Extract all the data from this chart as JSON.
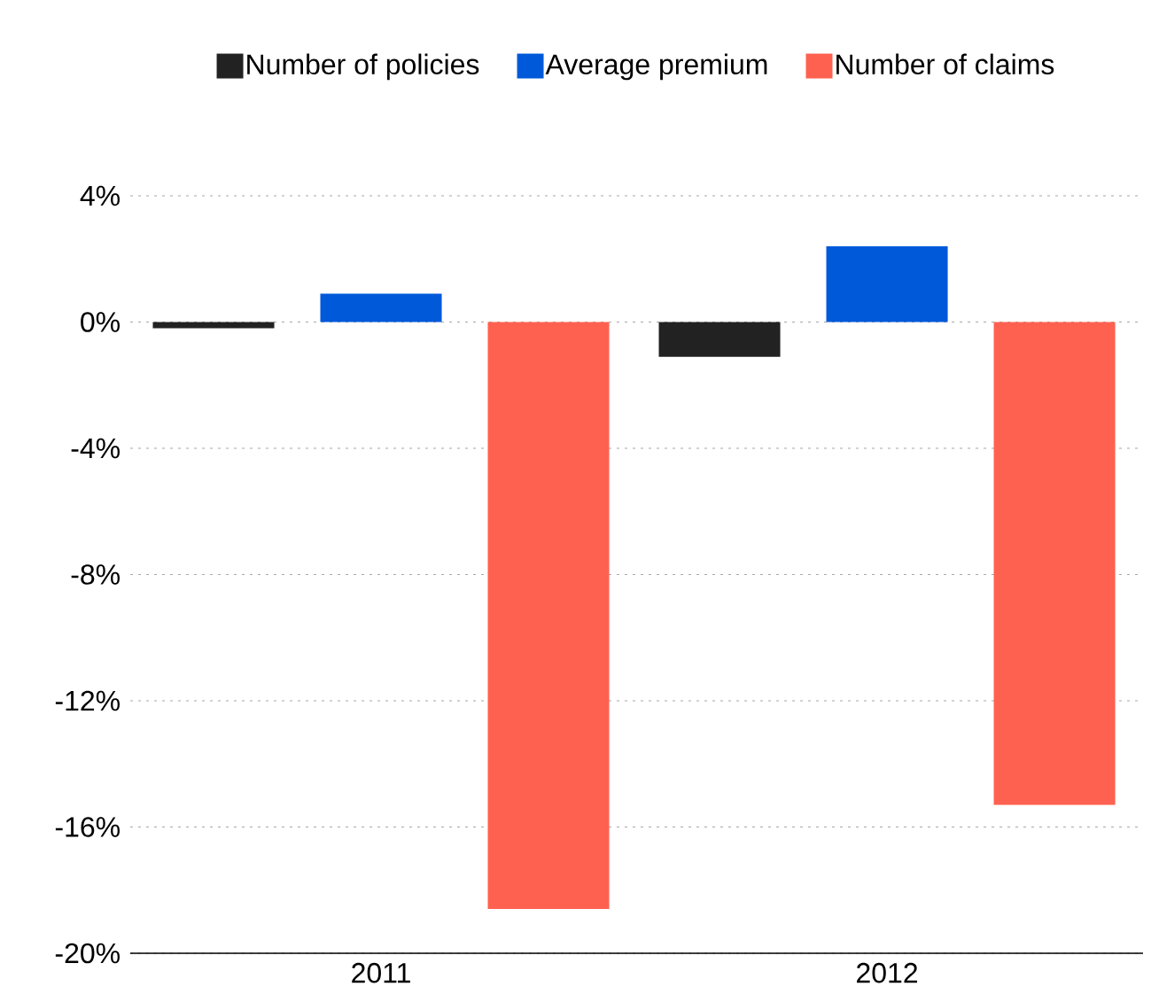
{
  "chart_data": {
    "type": "bar",
    "categories": [
      "2011",
      "2012"
    ],
    "series": [
      {
        "name": "Number of policies",
        "color": "#222222",
        "values": [
          -0.2,
          -1.1
        ]
      },
      {
        "name": "Average premium",
        "color": "#0059d9",
        "values": [
          0.9,
          2.4
        ]
      },
      {
        "name": "Number of claims",
        "color": "#ff6150",
        "values": [
          -18.6,
          -15.3
        ]
      }
    ],
    "ylim": [
      -20,
      4
    ],
    "yticks": [
      {
        "value": -20,
        "label": "-20%"
      },
      {
        "value": -16,
        "label": "-16%"
      },
      {
        "value": -12,
        "label": "-12%"
      },
      {
        "value": -8,
        "label": "-8%"
      },
      {
        "value": -4,
        "label": "-4%"
      },
      {
        "value": 0,
        "label": "0%"
      },
      {
        "value": 4,
        "label": "4%"
      }
    ],
    "grid": "y",
    "legend": "top"
  }
}
